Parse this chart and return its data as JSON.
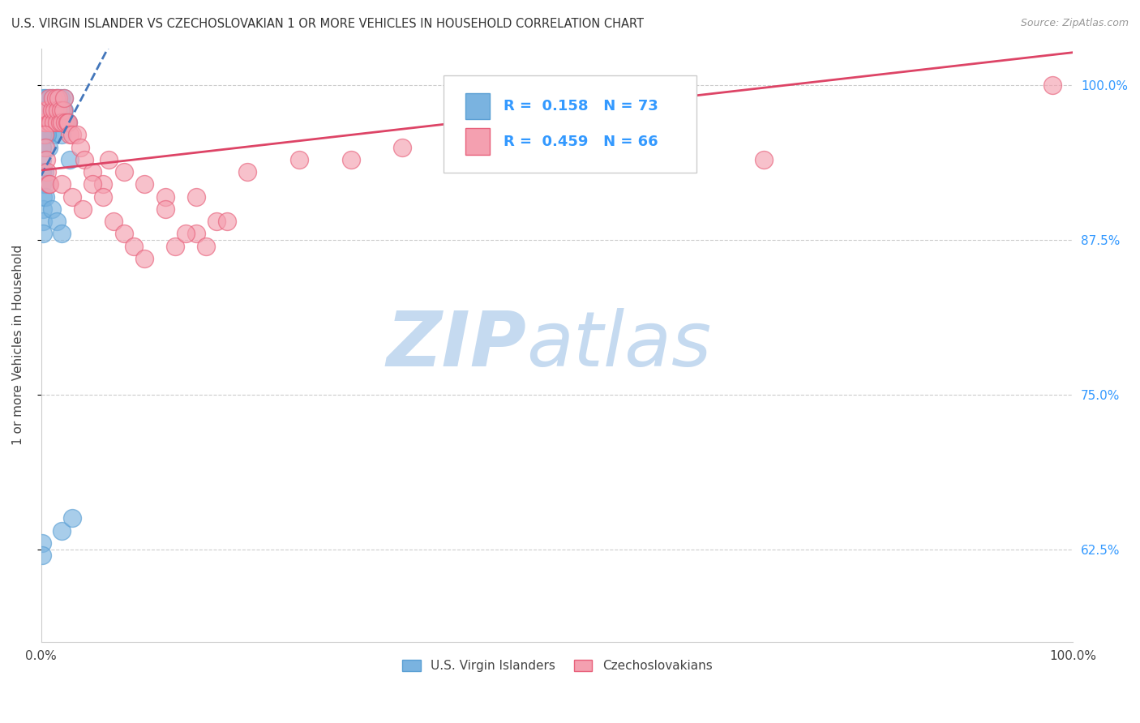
{
  "title": "U.S. VIRGIN ISLANDER VS CZECHOSLOVAKIAN 1 OR MORE VEHICLES IN HOUSEHOLD CORRELATION CHART",
  "source": "Source: ZipAtlas.com",
  "ylabel": "1 or more Vehicles in Household",
  "x_min": 0.0,
  "x_max": 1.0,
  "y_min": 0.55,
  "y_max": 1.03,
  "ytick_values": [
    0.625,
    0.75,
    0.875,
    1.0
  ],
  "grid_color": "#cccccc",
  "background_color": "#ffffff",
  "watermark_zip": "ZIP",
  "watermark_atlas": "atlas",
  "watermark_color_zip": "#c5daf0",
  "watermark_color_atlas": "#c5daf0",
  "series1_color": "#7ab3e0",
  "series1_edge_color": "#5a9fd4",
  "series2_color": "#f4a0b0",
  "series2_edge_color": "#e8607a",
  "series1_R": 0.158,
  "series1_N": 73,
  "series2_R": 0.459,
  "series2_N": 66,
  "legend_label1": "U.S. Virgin Islanders",
  "legend_label2": "Czechoslovakians",
  "trendline1_color": "#4477bb",
  "trendline2_color": "#dd4466",
  "annotation_color": "#3399ff",
  "series1_x": [
    0.003,
    0.003,
    0.004,
    0.004,
    0.005,
    0.005,
    0.006,
    0.006,
    0.007,
    0.007,
    0.008,
    0.008,
    0.009,
    0.009,
    0.01,
    0.01,
    0.011,
    0.011,
    0.012,
    0.012,
    0.013,
    0.013,
    0.014,
    0.014,
    0.015,
    0.015,
    0.016,
    0.016,
    0.017,
    0.017,
    0.018,
    0.018,
    0.019,
    0.019,
    0.02,
    0.02,
    0.021,
    0.021,
    0.022,
    0.022,
    0.023,
    0.025,
    0.026,
    0.028,
    0.002,
    0.002,
    0.002,
    0.002,
    0.003,
    0.003,
    0.004,
    0.005,
    0.006,
    0.007,
    0.001,
    0.001,
    0.001,
    0.001,
    0.001,
    0.002,
    0.002,
    0.002,
    0.002,
    0.003,
    0.004,
    0.004,
    0.01,
    0.015,
    0.02,
    0.001,
    0.001,
    0.02,
    0.03
  ],
  "series1_y": [
    0.99,
    0.98,
    0.98,
    0.97,
    0.99,
    0.98,
    0.97,
    0.96,
    0.98,
    0.97,
    0.99,
    0.98,
    0.98,
    0.97,
    0.99,
    0.98,
    0.97,
    0.96,
    0.98,
    0.97,
    0.98,
    0.97,
    0.98,
    0.97,
    0.99,
    0.98,
    0.99,
    0.98,
    0.98,
    0.97,
    0.98,
    0.97,
    0.99,
    0.98,
    0.97,
    0.96,
    0.98,
    0.97,
    0.99,
    0.98,
    0.97,
    0.97,
    0.97,
    0.94,
    0.99,
    0.98,
    0.97,
    0.96,
    0.98,
    0.97,
    0.96,
    0.97,
    0.96,
    0.95,
    0.96,
    0.95,
    0.94,
    0.93,
    0.92,
    0.91,
    0.9,
    0.89,
    0.88,
    0.93,
    0.92,
    0.91,
    0.9,
    0.89,
    0.88,
    0.63,
    0.62,
    0.64,
    0.65
  ],
  "series2_x": [
    0.003,
    0.004,
    0.005,
    0.006,
    0.007,
    0.008,
    0.009,
    0.01,
    0.011,
    0.012,
    0.013,
    0.014,
    0.015,
    0.016,
    0.017,
    0.018,
    0.019,
    0.02,
    0.021,
    0.022,
    0.023,
    0.025,
    0.026,
    0.028,
    0.03,
    0.035,
    0.038,
    0.042,
    0.05,
    0.06,
    0.065,
    0.08,
    0.1,
    0.12,
    0.15,
    0.2,
    0.25,
    0.3,
    0.35,
    0.4,
    0.5,
    0.6,
    0.7,
    0.003,
    0.004,
    0.005,
    0.006,
    0.007,
    0.008,
    0.02,
    0.03,
    0.04,
    0.05,
    0.06,
    0.07,
    0.08,
    0.09,
    0.1,
    0.13,
    0.15,
    0.16,
    0.17,
    0.12,
    0.14,
    0.18,
    0.98
  ],
  "series2_y": [
    0.97,
    0.97,
    0.98,
    0.98,
    0.99,
    0.97,
    0.97,
    0.98,
    0.99,
    0.97,
    0.98,
    0.99,
    0.97,
    0.98,
    0.99,
    0.97,
    0.98,
    0.97,
    0.98,
    0.99,
    0.97,
    0.97,
    0.97,
    0.96,
    0.96,
    0.96,
    0.95,
    0.94,
    0.93,
    0.92,
    0.94,
    0.93,
    0.92,
    0.91,
    0.91,
    0.93,
    0.94,
    0.94,
    0.95,
    0.96,
    0.96,
    0.95,
    0.94,
    0.96,
    0.95,
    0.94,
    0.93,
    0.92,
    0.92,
    0.92,
    0.91,
    0.9,
    0.92,
    0.91,
    0.89,
    0.88,
    0.87,
    0.86,
    0.87,
    0.88,
    0.87,
    0.89,
    0.9,
    0.88,
    0.89,
    1.0
  ]
}
